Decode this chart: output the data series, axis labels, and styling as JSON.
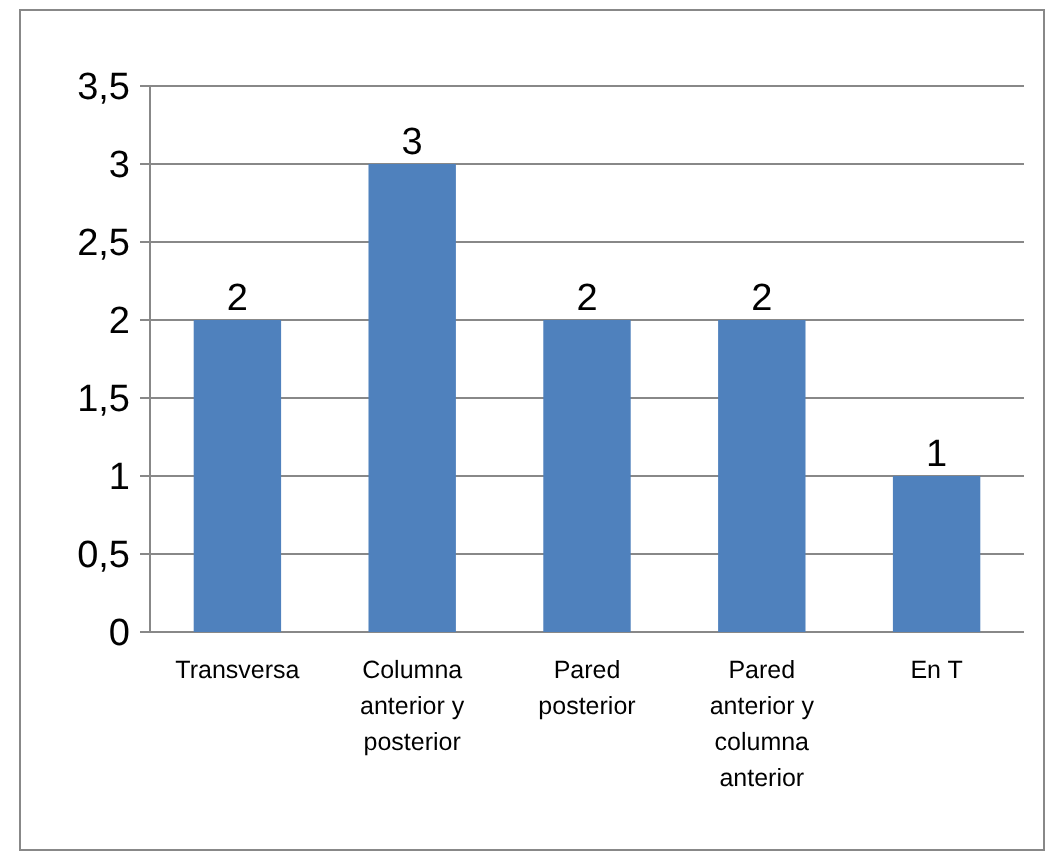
{
  "chart_data": {
    "type": "bar",
    "categories": [
      "Transversa",
      "Columna anterior y posterior",
      "Pared posterior",
      "Pared anterior y columna anterior",
      "En T"
    ],
    "values": [
      2,
      3,
      2,
      2,
      1
    ],
    "color": "#4f81bd",
    "data_labels": true,
    "grid": "y",
    "ylim": [
      0,
      3.5
    ],
    "yticks": [
      0,
      {
        "value": 0.5,
        "label": "0,5"
      },
      1,
      {
        "value": 1.5,
        "label": "1,5"
      },
      2,
      {
        "value": 2.5,
        "label": "2,5"
      },
      3,
      {
        "value": 3.5,
        "label": "3,5"
      }
    ]
  }
}
